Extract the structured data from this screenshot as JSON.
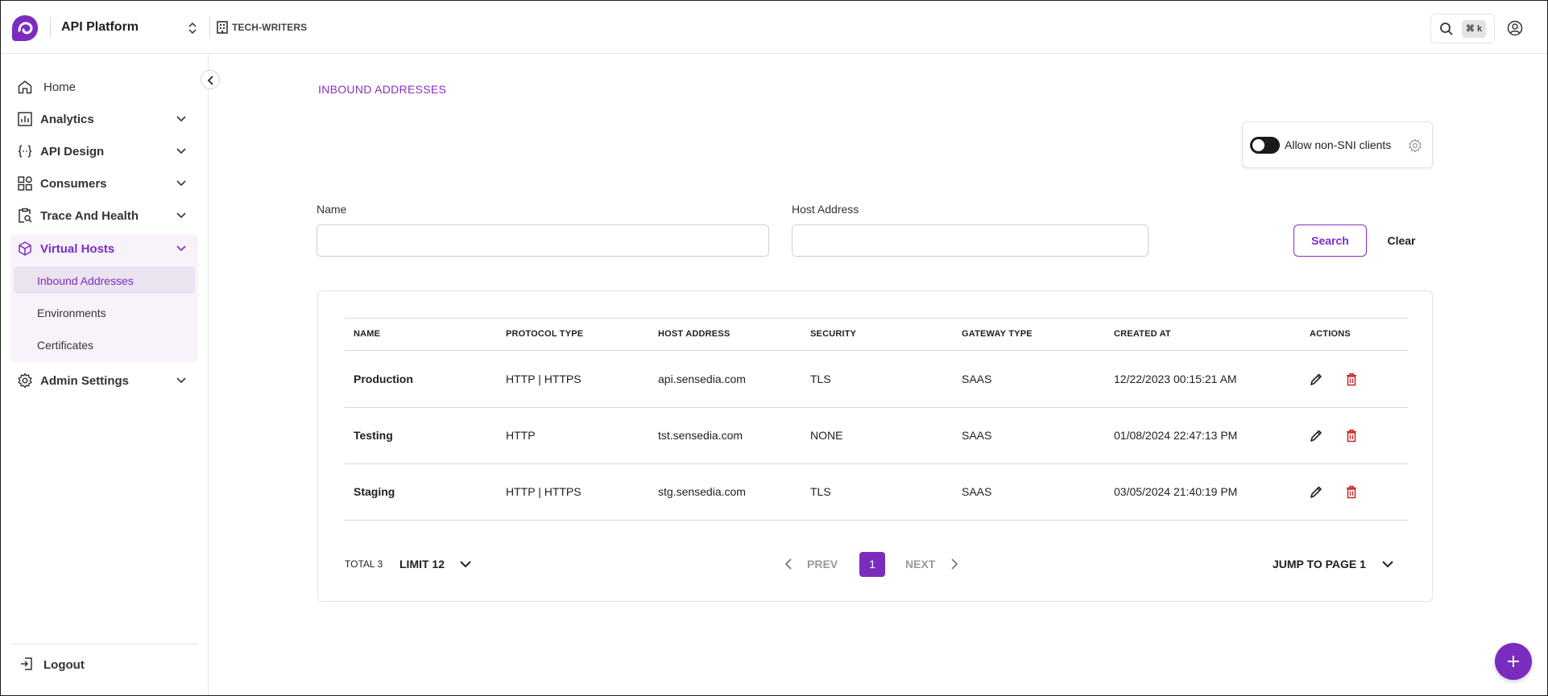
{
  "header": {
    "app_name": "API Platform",
    "org_name": "TECH-WRITERS",
    "search_shortcut": "⌘ k"
  },
  "sidebar": {
    "items": [
      {
        "label": "Home",
        "icon": "home-icon"
      },
      {
        "label": "Analytics",
        "icon": "chart-icon"
      },
      {
        "label": "API Design",
        "icon": "code-braces-icon"
      },
      {
        "label": "Consumers",
        "icon": "grid-shapes-icon"
      },
      {
        "label": "Trace And Health",
        "icon": "clipboard-search-icon"
      },
      {
        "label": "Virtual Hosts",
        "icon": "cube-icon",
        "expanded": true
      },
      {
        "label": "Admin Settings",
        "icon": "gear-icon"
      }
    ],
    "virtual_hosts_children": [
      {
        "label": "Inbound Addresses",
        "active": true
      },
      {
        "label": "Environments"
      },
      {
        "label": "Certificates"
      }
    ],
    "logout_label": "Logout"
  },
  "main": {
    "title": "INBOUND ADDRESSES",
    "sni_toggle_label": "Allow non-SNI clients",
    "sni_enabled": false,
    "filters": {
      "name_label": "Name",
      "name_value": "",
      "host_label": "Host Address",
      "host_value": "",
      "search_label": "Search",
      "clear_label": "Clear"
    },
    "table": {
      "columns": [
        "NAME",
        "PROTOCOL TYPE",
        "HOST ADDRESS",
        "SECURITY",
        "GATEWAY TYPE",
        "CREATED AT",
        "ACTIONS"
      ],
      "rows": [
        [
          "Production",
          "HTTP | HTTPS",
          "api.sensedia.com",
          "TLS",
          "SAAS",
          "12/22/2023 00:15:21 AM"
        ],
        [
          "Testing",
          "HTTP",
          "tst.sensedia.com",
          "NONE",
          "SAAS",
          "01/08/2024 22:47:13 PM"
        ],
        [
          "Staging",
          "HTTP | HTTPS",
          "stg.sensedia.com",
          "TLS",
          "SAAS",
          "03/05/2024 21:40:19 PM"
        ]
      ]
    },
    "pagination": {
      "total": "TOTAL 3",
      "limit": "LIMIT 12",
      "prev": "PREV",
      "current_page": "1",
      "next": "NEXT",
      "jump": "JUMP TO PAGE 1"
    }
  },
  "colors": {
    "accent": "#7b2cbf",
    "delete": "#c62828"
  }
}
